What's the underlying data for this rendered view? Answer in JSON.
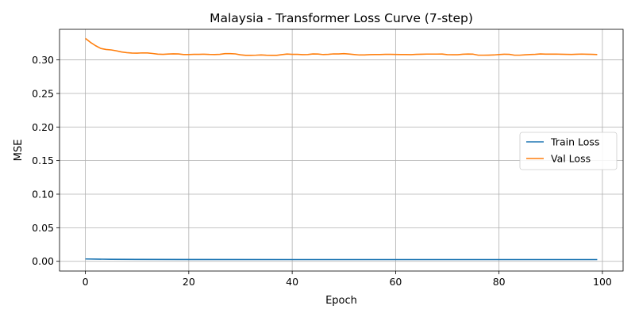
{
  "chart_data": {
    "type": "line",
    "title": "Malaysia - Transformer Loss Curve (7-step)",
    "xlabel": "Epoch",
    "ylabel": "MSE",
    "xlim": [
      -5,
      104
    ],
    "ylim": [
      -0.0145,
      0.3455
    ],
    "xticks": [
      0,
      20,
      40,
      60,
      80,
      100
    ],
    "yticks": [
      0.0,
      0.05,
      0.1,
      0.15,
      0.2,
      0.25,
      0.3
    ],
    "ytick_labels": [
      "0.00",
      "0.05",
      "0.10",
      "0.15",
      "0.20",
      "0.25",
      "0.30"
    ],
    "grid": true,
    "legend_position": "center-right",
    "series": [
      {
        "name": "Train Loss",
        "color": "#1f77b4",
        "x": [
          0,
          2,
          5,
          10,
          20,
          40,
          60,
          80,
          99
        ],
        "y": [
          0.0035,
          0.0033,
          0.003,
          0.0028,
          0.0027,
          0.0026,
          0.0026,
          0.0026,
          0.0026
        ]
      },
      {
        "name": "Val Loss",
        "color": "#ff7f0e",
        "x": [
          0,
          1,
          2,
          3,
          4,
          5,
          6,
          7,
          8,
          9,
          10,
          11,
          12,
          13,
          14,
          15,
          16,
          17,
          18,
          19,
          20,
          21,
          22,
          23,
          24,
          25,
          26,
          27,
          28,
          29,
          30,
          31,
          32,
          33,
          34,
          35,
          36,
          37,
          38,
          39,
          40,
          41,
          42,
          43,
          44,
          45,
          46,
          47,
          48,
          49,
          50,
          51,
          52,
          53,
          54,
          55,
          56,
          57,
          58,
          59,
          60,
          61,
          62,
          63,
          64,
          65,
          66,
          67,
          68,
          69,
          70,
          71,
          72,
          73,
          74,
          75,
          76,
          77,
          78,
          79,
          80,
          81,
          82,
          83,
          84,
          85,
          86,
          87,
          88,
          89,
          90,
          91,
          92,
          93,
          94,
          95,
          96,
          97,
          98,
          99
        ],
        "y": [
          0.332,
          0.326,
          0.321,
          0.317,
          0.3155,
          0.3148,
          0.3135,
          0.3118,
          0.3108,
          0.3102,
          0.31,
          0.3104,
          0.3103,
          0.3095,
          0.3085,
          0.3083,
          0.3087,
          0.309,
          0.3088,
          0.308,
          0.3079,
          0.3082,
          0.3083,
          0.3084,
          0.3081,
          0.308,
          0.3083,
          0.3093,
          0.3093,
          0.3089,
          0.3075,
          0.3068,
          0.3068,
          0.307,
          0.3074,
          0.3069,
          0.3068,
          0.3068,
          0.3078,
          0.3087,
          0.3083,
          0.3082,
          0.3078,
          0.308,
          0.3088,
          0.3087,
          0.3079,
          0.3082,
          0.3089,
          0.3088,
          0.3093,
          0.3087,
          0.308,
          0.3073,
          0.3073,
          0.3078,
          0.308,
          0.3079,
          0.3082,
          0.3083,
          0.3081,
          0.308,
          0.308,
          0.3078,
          0.3082,
          0.3084,
          0.3086,
          0.3086,
          0.3086,
          0.3087,
          0.3078,
          0.3077,
          0.3077,
          0.3084,
          0.3087,
          0.3085,
          0.307,
          0.307,
          0.3071,
          0.3073,
          0.308,
          0.3084,
          0.3082,
          0.307,
          0.307,
          0.3075,
          0.308,
          0.3083,
          0.3088,
          0.3085,
          0.3085,
          0.3086,
          0.3084,
          0.3083,
          0.3081,
          0.3084,
          0.3086,
          0.3084,
          0.3082,
          0.308
        ]
      }
    ]
  }
}
